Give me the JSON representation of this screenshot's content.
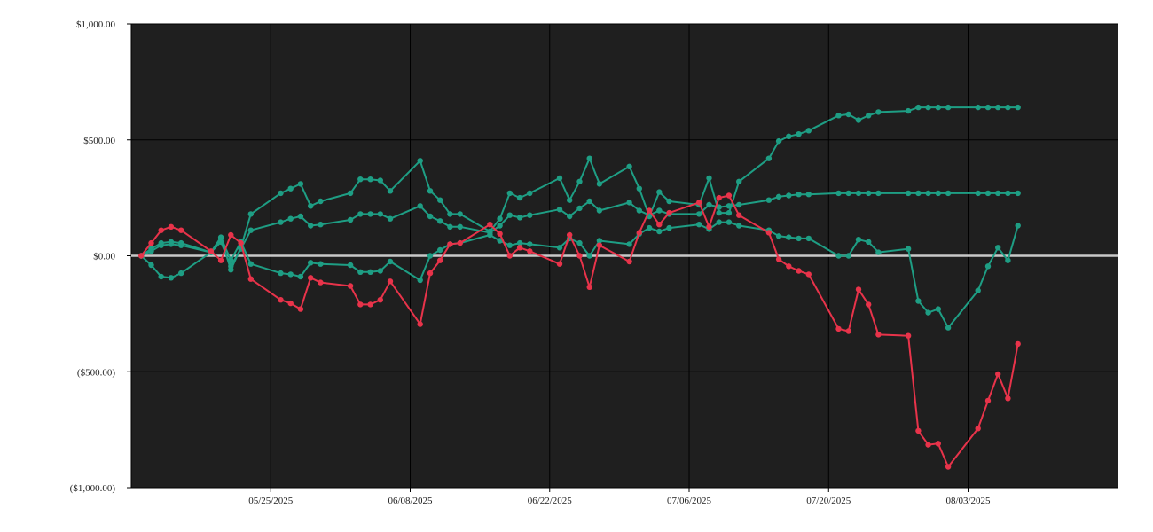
{
  "chart_data": {
    "type": "line",
    "background_color": "#1f1f1f",
    "grid": true,
    "legend": "none",
    "ylim": [
      -1000,
      1000
    ],
    "y_ticks": [
      {
        "value": 1000,
        "label": "$1,000.00"
      },
      {
        "value": 500,
        "label": "$500.00"
      },
      {
        "value": 0,
        "label": "$0.00"
      },
      {
        "value": -500,
        "label": "($500.00)"
      },
      {
        "value": -1000,
        "label": "($1,000.00)"
      }
    ],
    "xlim": [
      "2025-05-11",
      "2025-08-18"
    ],
    "x_ticks": [
      {
        "date": "2025-05-25",
        "label": "05/25/2025"
      },
      {
        "date": "2025-06-08",
        "label": "06/08/2025"
      },
      {
        "date": "2025-06-22",
        "label": "06/22/2025"
      },
      {
        "date": "2025-07-06",
        "label": "07/06/2025"
      },
      {
        "date": "2025-07-20",
        "label": "07/20/2025"
      },
      {
        "date": "2025-08-03",
        "label": "08/03/2025"
      }
    ],
    "zero_line_color": "#c8c8c8",
    "series": [
      {
        "color": "#e8334a",
        "points": [
          [
            "2025-05-12",
            0
          ],
          [
            "2025-05-13",
            55
          ],
          [
            "2025-05-14",
            110
          ],
          [
            "2025-05-15",
            125
          ],
          [
            "2025-05-16",
            110
          ],
          [
            "2025-05-19",
            20
          ],
          [
            "2025-05-20",
            -20
          ],
          [
            "2025-05-21",
            90
          ],
          [
            "2025-05-22",
            55
          ],
          [
            "2025-05-23",
            -100
          ],
          [
            "2025-05-26",
            -190
          ],
          [
            "2025-05-27",
            -205
          ],
          [
            "2025-05-28",
            -230
          ],
          [
            "2025-05-29",
            -95
          ],
          [
            "2025-05-30",
            -115
          ],
          [
            "2025-06-02",
            -130
          ],
          [
            "2025-06-03",
            -210
          ],
          [
            "2025-06-04",
            -210
          ],
          [
            "2025-06-05",
            -190
          ],
          [
            "2025-06-06",
            -110
          ],
          [
            "2025-06-09",
            -295
          ],
          [
            "2025-06-10",
            -75
          ],
          [
            "2025-06-11",
            -20
          ],
          [
            "2025-06-12",
            50
          ],
          [
            "2025-06-13",
            55
          ],
          [
            "2025-06-16",
            135
          ],
          [
            "2025-06-17",
            95
          ],
          [
            "2025-06-18",
            0
          ],
          [
            "2025-06-19",
            35
          ],
          [
            "2025-06-20",
            20
          ],
          [
            "2025-06-23",
            -35
          ],
          [
            "2025-06-24",
            90
          ],
          [
            "2025-06-25",
            0
          ],
          [
            "2025-06-26",
            -135
          ],
          [
            "2025-06-27",
            45
          ],
          [
            "2025-06-30",
            -25
          ],
          [
            "2025-07-01",
            100
          ],
          [
            "2025-07-02",
            195
          ],
          [
            "2025-07-03",
            135
          ],
          [
            "2025-07-04",
            185
          ],
          [
            "2025-07-07",
            230
          ],
          [
            "2025-07-08",
            125
          ],
          [
            "2025-07-09",
            250
          ],
          [
            "2025-07-10",
            260
          ],
          [
            "2025-07-11",
            175
          ],
          [
            "2025-07-14",
            100
          ],
          [
            "2025-07-15",
            -15
          ],
          [
            "2025-07-16",
            -45
          ],
          [
            "2025-07-17",
            -65
          ],
          [
            "2025-07-18",
            -80
          ],
          [
            "2025-07-21",
            -315
          ],
          [
            "2025-07-22",
            -325
          ],
          [
            "2025-07-23",
            -145
          ],
          [
            "2025-07-24",
            -210
          ],
          [
            "2025-07-25",
            -340
          ],
          [
            "2025-07-28",
            -345
          ],
          [
            "2025-07-29",
            -755
          ],
          [
            "2025-07-30",
            -815
          ],
          [
            "2025-07-31",
            -810
          ],
          [
            "2025-08-01",
            -910
          ],
          [
            "2025-08-04",
            -745
          ],
          [
            "2025-08-05",
            -625
          ],
          [
            "2025-08-06",
            -510
          ],
          [
            "2025-08-07",
            -615
          ],
          [
            "2025-08-08",
            -380
          ]
        ]
      },
      {
        "color": "#1e9e84",
        "points": [
          [
            "2025-05-12",
            0
          ],
          [
            "2025-05-13",
            30
          ],
          [
            "2025-05-14",
            55
          ],
          [
            "2025-05-15",
            60
          ],
          [
            "2025-05-16",
            55
          ],
          [
            "2025-05-19",
            15
          ],
          [
            "2025-05-20",
            75
          ],
          [
            "2025-05-21",
            -60
          ],
          [
            "2025-05-22",
            35
          ],
          [
            "2025-05-23",
            180
          ],
          [
            "2025-05-26",
            270
          ],
          [
            "2025-05-27",
            290
          ],
          [
            "2025-05-28",
            310
          ],
          [
            "2025-05-29",
            215
          ],
          [
            "2025-05-30",
            235
          ],
          [
            "2025-06-02",
            270
          ],
          [
            "2025-06-03",
            330
          ],
          [
            "2025-06-04",
            330
          ],
          [
            "2025-06-05",
            325
          ],
          [
            "2025-06-06",
            280
          ],
          [
            "2025-06-09",
            410
          ],
          [
            "2025-06-10",
            280
          ],
          [
            "2025-06-11",
            240
          ],
          [
            "2025-06-12",
            180
          ],
          [
            "2025-06-13",
            180
          ],
          [
            "2025-06-16",
            105
          ],
          [
            "2025-06-17",
            160
          ],
          [
            "2025-06-18",
            270
          ],
          [
            "2025-06-19",
            250
          ],
          [
            "2025-06-20",
            270
          ],
          [
            "2025-06-23",
            335
          ],
          [
            "2025-06-24",
            240
          ],
          [
            "2025-06-25",
            320
          ],
          [
            "2025-06-26",
            420
          ],
          [
            "2025-06-27",
            310
          ],
          [
            "2025-06-30",
            385
          ],
          [
            "2025-07-01",
            290
          ],
          [
            "2025-07-02",
            170
          ],
          [
            "2025-07-03",
            275
          ],
          [
            "2025-07-04",
            235
          ],
          [
            "2025-07-07",
            220
          ],
          [
            "2025-07-08",
            335
          ],
          [
            "2025-07-09",
            185
          ],
          [
            "2025-07-10",
            185
          ],
          [
            "2025-07-11",
            320
          ],
          [
            "2025-07-14",
            420
          ],
          [
            "2025-07-15",
            495
          ],
          [
            "2025-07-16",
            515
          ],
          [
            "2025-07-17",
            525
          ],
          [
            "2025-07-18",
            540
          ],
          [
            "2025-07-21",
            605
          ],
          [
            "2025-07-22",
            610
          ],
          [
            "2025-07-23",
            585
          ],
          [
            "2025-07-24",
            605
          ],
          [
            "2025-07-25",
            620
          ],
          [
            "2025-07-28",
            625
          ],
          [
            "2025-07-29",
            640
          ],
          [
            "2025-07-30",
            640
          ],
          [
            "2025-07-31",
            640
          ],
          [
            "2025-08-01",
            640
          ],
          [
            "2025-08-04",
            640
          ],
          [
            "2025-08-05",
            640
          ],
          [
            "2025-08-06",
            640
          ],
          [
            "2025-08-07",
            640
          ],
          [
            "2025-08-08",
            640
          ]
        ]
      },
      {
        "color": "#1e9e84",
        "points": [
          [
            "2025-05-12",
            0
          ],
          [
            "2025-05-13",
            20
          ],
          [
            "2025-05-14",
            45
          ],
          [
            "2025-05-15",
            50
          ],
          [
            "2025-05-16",
            45
          ],
          [
            "2025-05-19",
            15
          ],
          [
            "2025-05-20",
            60
          ],
          [
            "2025-05-21",
            -45
          ],
          [
            "2025-05-22",
            30
          ],
          [
            "2025-05-23",
            110
          ],
          [
            "2025-05-26",
            145
          ],
          [
            "2025-05-27",
            160
          ],
          [
            "2025-05-28",
            170
          ],
          [
            "2025-05-29",
            130
          ],
          [
            "2025-05-30",
            135
          ],
          [
            "2025-06-02",
            155
          ],
          [
            "2025-06-03",
            180
          ],
          [
            "2025-06-04",
            180
          ],
          [
            "2025-06-05",
            180
          ],
          [
            "2025-06-06",
            160
          ],
          [
            "2025-06-09",
            215
          ],
          [
            "2025-06-10",
            170
          ],
          [
            "2025-06-11",
            150
          ],
          [
            "2025-06-12",
            125
          ],
          [
            "2025-06-13",
            125
          ],
          [
            "2025-06-16",
            100
          ],
          [
            "2025-06-17",
            130
          ],
          [
            "2025-06-18",
            175
          ],
          [
            "2025-06-19",
            165
          ],
          [
            "2025-06-20",
            175
          ],
          [
            "2025-06-23",
            200
          ],
          [
            "2025-06-24",
            170
          ],
          [
            "2025-06-25",
            205
          ],
          [
            "2025-06-26",
            235
          ],
          [
            "2025-06-27",
            195
          ],
          [
            "2025-06-30",
            230
          ],
          [
            "2025-07-01",
            195
          ],
          [
            "2025-07-02",
            175
          ],
          [
            "2025-07-03",
            195
          ],
          [
            "2025-07-04",
            180
          ],
          [
            "2025-07-07",
            180
          ],
          [
            "2025-07-08",
            220
          ],
          [
            "2025-07-09",
            210
          ],
          [
            "2025-07-10",
            215
          ],
          [
            "2025-07-11",
            220
          ],
          [
            "2025-07-14",
            240
          ],
          [
            "2025-07-15",
            255
          ],
          [
            "2025-07-16",
            260
          ],
          [
            "2025-07-17",
            265
          ],
          [
            "2025-07-18",
            265
          ],
          [
            "2025-07-21",
            270
          ],
          [
            "2025-07-22",
            270
          ],
          [
            "2025-07-23",
            270
          ],
          [
            "2025-07-24",
            270
          ],
          [
            "2025-07-25",
            270
          ],
          [
            "2025-07-28",
            270
          ],
          [
            "2025-07-29",
            270
          ],
          [
            "2025-07-30",
            270
          ],
          [
            "2025-07-31",
            270
          ],
          [
            "2025-08-01",
            270
          ],
          [
            "2025-08-04",
            270
          ],
          [
            "2025-08-05",
            270
          ],
          [
            "2025-08-06",
            270
          ],
          [
            "2025-08-07",
            270
          ],
          [
            "2025-08-08",
            270
          ]
        ]
      },
      {
        "color": "#1e9e84",
        "points": [
          [
            "2025-05-12",
            0
          ],
          [
            "2025-05-13",
            -40
          ],
          [
            "2025-05-14",
            -90
          ],
          [
            "2025-05-15",
            -95
          ],
          [
            "2025-05-16",
            -75
          ],
          [
            "2025-05-19",
            15
          ],
          [
            "2025-05-20",
            80
          ],
          [
            "2025-05-21",
            -20
          ],
          [
            "2025-05-22",
            60
          ],
          [
            "2025-05-23",
            -35
          ],
          [
            "2025-05-26",
            -75
          ],
          [
            "2025-05-27",
            -80
          ],
          [
            "2025-05-28",
            -90
          ],
          [
            "2025-05-29",
            -30
          ],
          [
            "2025-05-30",
            -35
          ],
          [
            "2025-06-02",
            -40
          ],
          [
            "2025-06-03",
            -70
          ],
          [
            "2025-06-04",
            -70
          ],
          [
            "2025-06-05",
            -65
          ],
          [
            "2025-06-06",
            -25
          ],
          [
            "2025-06-09",
            -105
          ],
          [
            "2025-06-10",
            0
          ],
          [
            "2025-06-11",
            25
          ],
          [
            "2025-06-12",
            50
          ],
          [
            "2025-06-13",
            55
          ],
          [
            "2025-06-16",
            90
          ],
          [
            "2025-06-17",
            65
          ],
          [
            "2025-06-18",
            45
          ],
          [
            "2025-06-19",
            55
          ],
          [
            "2025-06-20",
            50
          ],
          [
            "2025-06-23",
            35
          ],
          [
            "2025-06-24",
            75
          ],
          [
            "2025-06-25",
            55
          ],
          [
            "2025-06-26",
            0
          ],
          [
            "2025-06-27",
            65
          ],
          [
            "2025-06-30",
            50
          ],
          [
            "2025-07-01",
            95
          ],
          [
            "2025-07-02",
            120
          ],
          [
            "2025-07-03",
            105
          ],
          [
            "2025-07-04",
            120
          ],
          [
            "2025-07-07",
            135
          ],
          [
            "2025-07-08",
            115
          ],
          [
            "2025-07-09",
            145
          ],
          [
            "2025-07-10",
            145
          ],
          [
            "2025-07-11",
            130
          ],
          [
            "2025-07-14",
            110
          ],
          [
            "2025-07-15",
            85
          ],
          [
            "2025-07-16",
            80
          ],
          [
            "2025-07-17",
            75
          ],
          [
            "2025-07-18",
            75
          ],
          [
            "2025-07-21",
            0
          ],
          [
            "2025-07-22",
            0
          ],
          [
            "2025-07-23",
            70
          ],
          [
            "2025-07-24",
            60
          ],
          [
            "2025-07-25",
            15
          ],
          [
            "2025-07-28",
            30
          ],
          [
            "2025-07-29",
            -195
          ],
          [
            "2025-07-30",
            -245
          ],
          [
            "2025-07-31",
            -230
          ],
          [
            "2025-08-01",
            -310
          ],
          [
            "2025-08-04",
            -150
          ],
          [
            "2025-08-05",
            -45
          ],
          [
            "2025-08-06",
            35
          ],
          [
            "2025-08-07",
            -20
          ],
          [
            "2025-08-08",
            130
          ]
        ]
      }
    ]
  }
}
